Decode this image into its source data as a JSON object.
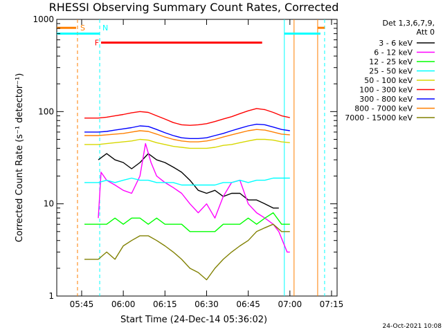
{
  "chart_data": {
    "type": "line",
    "title": "RHESSI Observing Summary Count Rates, Corrected",
    "xlabel": "Start Time (24-Dec-14 05:36:02)",
    "ylabel": "Corrected Count Rate (s⁻¹ detector⁻¹)",
    "yscale": "log",
    "ylim": [
      1,
      1000
    ],
    "xlim": [
      "05:36:02",
      "07:17:00"
    ],
    "x_ticks": [
      "05:45",
      "06:00",
      "06:15",
      "06:30",
      "06:45",
      "07:00",
      "07:15"
    ],
    "y_ticks": [
      "1",
      "10",
      "100",
      "1000"
    ],
    "legend_position": "top-right",
    "legend_header": [
      "Det 1,3,6,7,9,",
      "Att 0"
    ],
    "footer": "24-Oct-2021 10:08",
    "series": [
      {
        "name": "3 - 6 keV",
        "color": "#000000",
        "points": [
          [
            "05:51",
            30
          ],
          [
            "05:54",
            35
          ],
          [
            "05:57",
            30
          ],
          [
            "06:00",
            28
          ],
          [
            "06:03",
            24
          ],
          [
            "06:06",
            28
          ],
          [
            "06:09",
            35
          ],
          [
            "06:12",
            30
          ],
          [
            "06:15",
            28
          ],
          [
            "06:18",
            25
          ],
          [
            "06:21",
            22
          ],
          [
            "06:24",
            18
          ],
          [
            "06:27",
            14
          ],
          [
            "06:30",
            13
          ],
          [
            "06:33",
            14
          ],
          [
            "06:36",
            12
          ],
          [
            "06:39",
            13
          ],
          [
            "06:42",
            13
          ],
          [
            "06:45",
            11
          ],
          [
            "06:48",
            11
          ],
          [
            "06:51",
            10
          ],
          [
            "06:54",
            9
          ],
          [
            "06:56",
            9
          ]
        ]
      },
      {
        "name": "6 - 12 keV",
        "color": "#ff00ff",
        "points": [
          [
            "05:51",
            7
          ],
          [
            "05:52",
            22
          ],
          [
            "05:54",
            18
          ],
          [
            "05:57",
            16
          ],
          [
            "06:00",
            14
          ],
          [
            "06:03",
            13
          ],
          [
            "06:06",
            20
          ],
          [
            "06:08",
            45
          ],
          [
            "06:10",
            28
          ],
          [
            "06:12",
            20
          ],
          [
            "06:15",
            17
          ],
          [
            "06:18",
            15
          ],
          [
            "06:21",
            13
          ],
          [
            "06:24",
            10
          ],
          [
            "06:27",
            8
          ],
          [
            "06:30",
            10
          ],
          [
            "06:33",
            7
          ],
          [
            "06:36",
            12
          ],
          [
            "06:39",
            17
          ],
          [
            "06:42",
            18
          ],
          [
            "06:45",
            10
          ],
          [
            "06:48",
            8
          ],
          [
            "06:51",
            7
          ],
          [
            "06:54",
            6
          ],
          [
            "06:56",
            5
          ],
          [
            "06:59",
            3
          ],
          [
            "07:00",
            3
          ]
        ]
      },
      {
        "name": "12 - 25 keV",
        "color": "#00ff00",
        "points": [
          [
            "05:46",
            6
          ],
          [
            "05:51",
            6
          ],
          [
            "05:54",
            6
          ],
          [
            "05:57",
            7
          ],
          [
            "06:00",
            6
          ],
          [
            "06:03",
            7
          ],
          [
            "06:06",
            7
          ],
          [
            "06:09",
            6
          ],
          [
            "06:12",
            7
          ],
          [
            "06:15",
            6
          ],
          [
            "06:18",
            6
          ],
          [
            "06:21",
            6
          ],
          [
            "06:24",
            5
          ],
          [
            "06:27",
            5
          ],
          [
            "06:30",
            5
          ],
          [
            "06:33",
            5
          ],
          [
            "06:36",
            6
          ],
          [
            "06:39",
            6
          ],
          [
            "06:42",
            6
          ],
          [
            "06:45",
            7
          ],
          [
            "06:48",
            6
          ],
          [
            "06:51",
            7
          ],
          [
            "06:54",
            8
          ],
          [
            "06:57",
            6
          ],
          [
            "06:59",
            6
          ],
          [
            "07:00",
            6
          ]
        ]
      },
      {
        "name": "25 - 50 keV",
        "color": "#00ffff",
        "points": [
          [
            "05:46",
            17
          ],
          [
            "05:51",
            17
          ],
          [
            "05:54",
            18
          ],
          [
            "05:57",
            17
          ],
          [
            "06:00",
            18
          ],
          [
            "06:03",
            19
          ],
          [
            "06:06",
            18
          ],
          [
            "06:09",
            18
          ],
          [
            "06:12",
            17
          ],
          [
            "06:15",
            17
          ],
          [
            "06:18",
            17
          ],
          [
            "06:21",
            16
          ],
          [
            "06:24",
            16
          ],
          [
            "06:27",
            16
          ],
          [
            "06:30",
            16
          ],
          [
            "06:33",
            16
          ],
          [
            "06:36",
            17
          ],
          [
            "06:39",
            17
          ],
          [
            "06:42",
            18
          ],
          [
            "06:45",
            17
          ],
          [
            "06:48",
            18
          ],
          [
            "06:51",
            18
          ],
          [
            "06:54",
            19
          ],
          [
            "06:57",
            19
          ],
          [
            "07:00",
            19
          ]
        ]
      },
      {
        "name": "50 - 100 keV",
        "color": "#d7d700",
        "points": [
          [
            "05:46",
            44
          ],
          [
            "05:51",
            44
          ],
          [
            "05:54",
            45
          ],
          [
            "05:57",
            46
          ],
          [
            "06:00",
            47
          ],
          [
            "06:03",
            48
          ],
          [
            "06:06",
            50
          ],
          [
            "06:09",
            49
          ],
          [
            "06:12",
            46
          ],
          [
            "06:15",
            44
          ],
          [
            "06:18",
            42
          ],
          [
            "06:21",
            41
          ],
          [
            "06:24",
            40
          ],
          [
            "06:27",
            40
          ],
          [
            "06:30",
            40
          ],
          [
            "06:33",
            41
          ],
          [
            "06:36",
            43
          ],
          [
            "06:39",
            44
          ],
          [
            "06:42",
            46
          ],
          [
            "06:45",
            48
          ],
          [
            "06:48",
            50
          ],
          [
            "06:51",
            50
          ],
          [
            "06:54",
            49
          ],
          [
            "06:57",
            47
          ],
          [
            "07:00",
            46
          ]
        ]
      },
      {
        "name": "100 - 300 keV",
        "color": "#ff0000",
        "points": [
          [
            "05:46",
            85
          ],
          [
            "05:51",
            85
          ],
          [
            "05:54",
            87
          ],
          [
            "05:57",
            90
          ],
          [
            "06:00",
            93
          ],
          [
            "06:03",
            97
          ],
          [
            "06:06",
            100
          ],
          [
            "06:09",
            98
          ],
          [
            "06:12",
            90
          ],
          [
            "06:15",
            83
          ],
          [
            "06:18",
            76
          ],
          [
            "06:21",
            72
          ],
          [
            "06:24",
            71
          ],
          [
            "06:27",
            72
          ],
          [
            "06:30",
            74
          ],
          [
            "06:33",
            78
          ],
          [
            "06:36",
            83
          ],
          [
            "06:39",
            88
          ],
          [
            "06:42",
            95
          ],
          [
            "06:45",
            102
          ],
          [
            "06:48",
            108
          ],
          [
            "06:51",
            105
          ],
          [
            "06:54",
            98
          ],
          [
            "06:57",
            90
          ],
          [
            "07:00",
            86
          ]
        ]
      },
      {
        "name": "300 - 800 keV",
        "color": "#0000ff",
        "points": [
          [
            "05:46",
            60
          ],
          [
            "05:51",
            60
          ],
          [
            "05:54",
            61
          ],
          [
            "05:57",
            63
          ],
          [
            "06:00",
            65
          ],
          [
            "06:03",
            67
          ],
          [
            "06:06",
            70
          ],
          [
            "06:09",
            69
          ],
          [
            "06:12",
            64
          ],
          [
            "06:15",
            59
          ],
          [
            "06:18",
            55
          ],
          [
            "06:21",
            52
          ],
          [
            "06:24",
            51
          ],
          [
            "06:27",
            51
          ],
          [
            "06:30",
            52
          ],
          [
            "06:33",
            55
          ],
          [
            "06:36",
            58
          ],
          [
            "06:39",
            62
          ],
          [
            "06:42",
            66
          ],
          [
            "06:45",
            70
          ],
          [
            "06:48",
            73
          ],
          [
            "06:51",
            72
          ],
          [
            "06:54",
            68
          ],
          [
            "06:57",
            64
          ],
          [
            "07:00",
            62
          ]
        ]
      },
      {
        "name": "800 - 7000 keV",
        "color": "#ff7f00",
        "points": [
          [
            "05:46",
            55
          ],
          [
            "05:51",
            55
          ],
          [
            "05:54",
            56
          ],
          [
            "05:57",
            57
          ],
          [
            "06:00",
            58
          ],
          [
            "06:03",
            60
          ],
          [
            "06:06",
            62
          ],
          [
            "06:09",
            61
          ],
          [
            "06:12",
            57
          ],
          [
            "06:15",
            53
          ],
          [
            "06:18",
            50
          ],
          [
            "06:21",
            48
          ],
          [
            "06:24",
            47
          ],
          [
            "06:27",
            47
          ],
          [
            "06:30",
            48
          ],
          [
            "06:33",
            50
          ],
          [
            "06:36",
            53
          ],
          [
            "06:39",
            56
          ],
          [
            "06:42",
            59
          ],
          [
            "06:45",
            62
          ],
          [
            "06:48",
            64
          ],
          [
            "06:51",
            63
          ],
          [
            "06:54",
            60
          ],
          [
            "06:57",
            57
          ],
          [
            "07:00",
            56
          ]
        ]
      },
      {
        "name": "7000 - 15000 keV",
        "color": "#808000",
        "points": [
          [
            "05:46",
            2.5
          ],
          [
            "05:51",
            2.5
          ],
          [
            "05:54",
            3
          ],
          [
            "05:57",
            2.5
          ],
          [
            "06:00",
            3.5
          ],
          [
            "06:03",
            4
          ],
          [
            "06:06",
            4.5
          ],
          [
            "06:09",
            4.5
          ],
          [
            "06:12",
            4
          ],
          [
            "06:15",
            3.5
          ],
          [
            "06:18",
            3
          ],
          [
            "06:21",
            2.5
          ],
          [
            "06:24",
            2
          ],
          [
            "06:27",
            1.8
          ],
          [
            "06:30",
            1.5
          ],
          [
            "06:33",
            2
          ],
          [
            "06:36",
            2.5
          ],
          [
            "06:39",
            3
          ],
          [
            "06:42",
            3.5
          ],
          [
            "06:45",
            4
          ],
          [
            "06:48",
            5
          ],
          [
            "06:51",
            5.5
          ],
          [
            "06:54",
            6
          ],
          [
            "06:57",
            5
          ],
          [
            "07:00",
            5
          ]
        ]
      }
    ],
    "vertical_markers": [
      {
        "label": "S",
        "time": "05:43:30",
        "color": "#ff7f00",
        "style": "dashed"
      },
      {
        "label": "N",
        "time": "05:51:30",
        "color": "#00ffff",
        "style": "dashed"
      },
      {
        "label": "",
        "time": "06:58:00",
        "color": "#00ffff",
        "style": "solid"
      },
      {
        "label": "",
        "time": "07:01:30",
        "color": "#ff7f00",
        "style": "solid"
      },
      {
        "label": "",
        "time": "07:10:00",
        "color": "#ff7f00",
        "style": "solid"
      },
      {
        "label": "",
        "time": "07:12:30",
        "color": "#00ffff",
        "style": "dashed"
      }
    ],
    "flag_bars": [
      {
        "label": "",
        "start": "05:36:02",
        "end": "05:43:00",
        "color": "#ff7f00",
        "level": 810
      },
      {
        "label": "",
        "start": "05:36:02",
        "end": "05:51:30",
        "color": "#00ffff",
        "level": 700
      },
      {
        "label": "F",
        "start": "05:52:00",
        "end": "06:50:00",
        "color": "#ff0000",
        "level": 560
      },
      {
        "label": "",
        "start": "06:58:00",
        "end": "07:11:00",
        "color": "#00ffff",
        "level": 700
      },
      {
        "label": "",
        "start": "07:10:00",
        "end": "07:12:30",
        "color": "#ff7f00",
        "level": 810
      }
    ]
  }
}
